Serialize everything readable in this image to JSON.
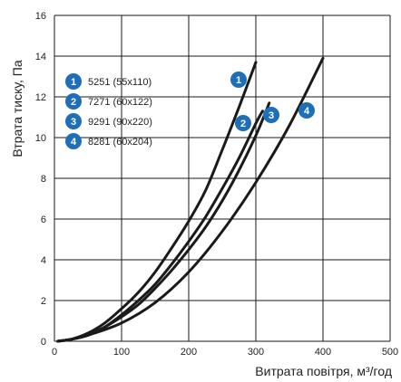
{
  "chart_data": {
    "type": "line",
    "xlabel": "Витрата повітря, м³/год",
    "ylabel": "Втрата тиску, Па",
    "xlim": [
      0,
      500
    ],
    "ylim": [
      0,
      16
    ],
    "x_ticks": [
      "0",
      "100",
      "200",
      "300",
      "400",
      "500"
    ],
    "y_ticks": [
      "0",
      "2",
      "4",
      "6",
      "8",
      "10",
      "12",
      "14",
      "16"
    ],
    "grid": true,
    "legend_position": "top-left",
    "badge_color": "#1e6fb8",
    "series": [
      {
        "name": "5251 (55x110)",
        "badge": "1",
        "x": [
          5,
          25,
          50,
          75,
          100,
          125,
          150,
          175,
          200,
          225,
          250,
          275,
          300
        ],
        "y": [
          0,
          0.1,
          0.4,
          0.9,
          1.6,
          2.4,
          3.4,
          4.6,
          5.9,
          7.4,
          9.4,
          11.5,
          13.7
        ]
      },
      {
        "name": "7271 (60x122)",
        "badge": "2",
        "x": [
          5,
          25,
          50,
          75,
          100,
          125,
          150,
          175,
          200,
          225,
          250,
          275,
          300,
          310
        ],
        "y": [
          0,
          0.1,
          0.3,
          0.7,
          1.3,
          2.0,
          2.8,
          3.8,
          4.9,
          6.1,
          7.5,
          9.0,
          10.7,
          11.3
        ]
      },
      {
        "name": "9291 (90x220)",
        "badge": "3",
        "x": [
          5,
          25,
          50,
          75,
          100,
          125,
          150,
          175,
          200,
          225,
          250,
          275,
          300,
          320
        ],
        "y": [
          0,
          0.1,
          0.3,
          0.7,
          1.2,
          1.8,
          2.6,
          3.5,
          4.5,
          5.6,
          6.9,
          8.4,
          10.1,
          11.7
        ]
      },
      {
        "name": "8281 (60x204)",
        "badge": "4",
        "x": [
          5,
          25,
          50,
          100,
          150,
          200,
          250,
          300,
          350,
          400
        ],
        "y": [
          0,
          0.1,
          0.3,
          0.9,
          1.9,
          3.4,
          5.4,
          7.8,
          10.6,
          13.9
        ]
      }
    ]
  }
}
